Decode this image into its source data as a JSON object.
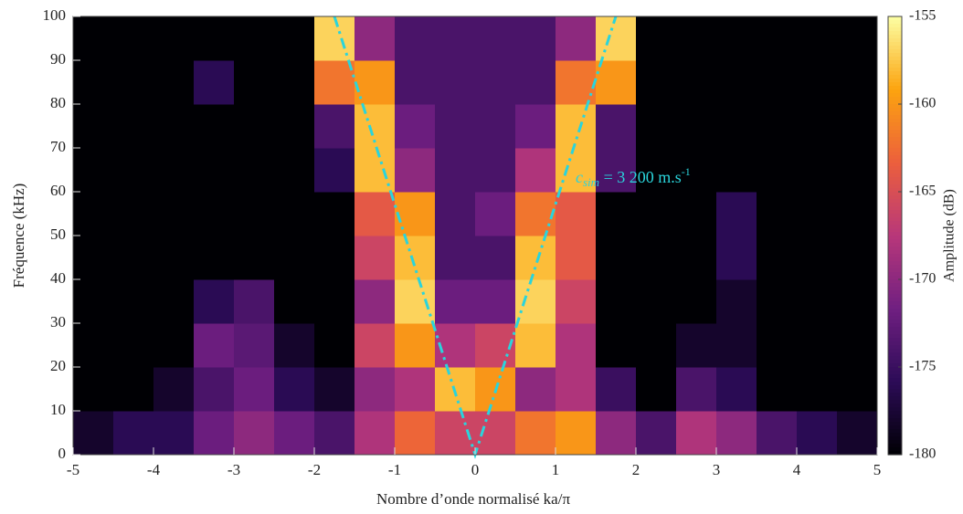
{
  "chart_data": {
    "type": "heatmap",
    "xlabel": "Nombre d’onde normalisé ka/π",
    "ylabel": "Fréquence (kHz)",
    "colorbar_label": "Amplitude (dB)",
    "xlim": [
      -5,
      5
    ],
    "ylim": [
      0,
      100
    ],
    "xticks": [
      -5,
      -4,
      -3,
      -2,
      -1,
      0,
      1,
      2,
      3,
      4,
      5
    ],
    "yticks": [
      0,
      10,
      20,
      30,
      40,
      50,
      60,
      70,
      80,
      90,
      100
    ],
    "clim": [
      -180,
      -155
    ],
    "cticks": [
      -180,
      -175,
      -170,
      -165,
      -160,
      -155
    ],
    "colormap": [
      "#000004",
      "#2c0b57",
      "#701f81",
      "#b8377a",
      "#ec5f3c",
      "#fca40f",
      "#fcffa4"
    ],
    "xbins": [
      -5,
      -4.5,
      -4,
      -3.5,
      -3,
      -2.5,
      -2,
      -1.5,
      -1,
      -0.5,
      0,
      0.5,
      1,
      1.5,
      2,
      2.5,
      3,
      3.5,
      4,
      4.5,
      5
    ],
    "ybins": [
      0,
      10,
      20,
      30,
      40,
      50,
      60,
      70,
      80,
      90,
      100
    ],
    "z": [
      [
        -178,
        -176,
        -176,
        -172,
        -170,
        -172,
        -174,
        -168,
        -163,
        -166,
        -166,
        -162,
        -160,
        -170,
        -174,
        -168,
        -170,
        -174,
        -176,
        -178
      ],
      [
        -180,
        -180,
        -178,
        -174,
        -172,
        -176,
        -178,
        -170,
        -168,
        -158,
        -160,
        -170,
        -168,
        -175,
        -180,
        -174,
        -176,
        -180,
        -180,
        -180
      ],
      [
        -180,
        -180,
        -180,
        -172,
        -173,
        -178,
        -180,
        -166,
        -160,
        -168,
        -166,
        -158,
        -168,
        -180,
        -180,
        -178,
        -178,
        -180,
        -180,
        -180
      ],
      [
        -180,
        -180,
        -180,
        -176,
        -174,
        -180,
        -180,
        -170,
        -157,
        -172,
        -172,
        -157,
        -166,
        -180,
        -180,
        -180,
        -178,
        -180,
        -180,
        -180
      ],
      [
        -180,
        -180,
        -180,
        -180,
        -180,
        -180,
        -180,
        -166,
        -158,
        -174,
        -174,
        -158,
        -164,
        -180,
        -180,
        -180,
        -176,
        -180,
        -180,
        -180
      ],
      [
        -180,
        -180,
        -180,
        -180,
        -180,
        -180,
        -180,
        -164,
        -160,
        -174,
        -172,
        -162,
        -164,
        -180,
        -180,
        -180,
        -176,
        -180,
        -180,
        -180
      ],
      [
        -180,
        -180,
        -180,
        -180,
        -180,
        -180,
        -176,
        -158,
        -170,
        -174,
        -174,
        -168,
        -158,
        -174,
        -180,
        -180,
        -180,
        -180,
        -180,
        -180
      ],
      [
        -180,
        -180,
        -180,
        -180,
        -180,
        -180,
        -174,
        -158,
        -172,
        -174,
        -174,
        -172,
        -158,
        -174,
        -180,
        -180,
        -180,
        -180,
        -180,
        -180
      ],
      [
        -180,
        -180,
        -180,
        -176,
        -180,
        -180,
        -162,
        -160,
        -174,
        -174,
        -174,
        -174,
        -162,
        -160,
        -180,
        -180,
        -180,
        -180,
        -180,
        -180
      ],
      [
        -180,
        -180,
        -180,
        -180,
        -180,
        -180,
        -157,
        -170,
        -174,
        -174,
        -174,
        -174,
        -170,
        -157,
        -180,
        -180,
        -180,
        -180,
        -180,
        -180
      ]
    ],
    "line": {
      "color": "#2ad4dc",
      "x": [
        -1.75,
        0,
        1.75
      ],
      "y": [
        100,
        0,
        100
      ]
    },
    "annotation": {
      "symbol": "c",
      "subscript": "sim",
      "text": " = 3 200 m.s",
      "superscript": "-1"
    }
  }
}
